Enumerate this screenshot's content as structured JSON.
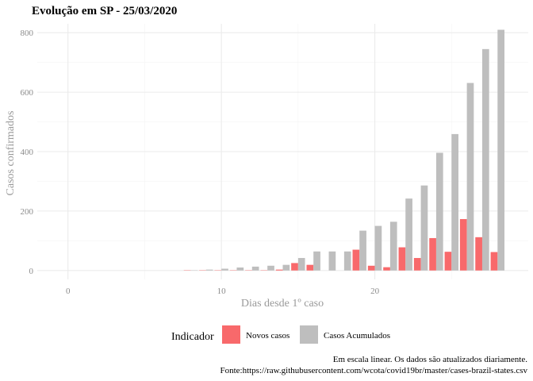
{
  "colors": {
    "novos": "#f8696b",
    "acumulados": "#bebebe",
    "grid_major": "#ebebeb",
    "grid_minor": "#f4f4f4"
  },
  "chart_data": {
    "type": "bar",
    "title": "Evolução em SP  -  25/03/2020",
    "xlabel": "Dias desde 1º caso",
    "ylabel": "Casos confirmados",
    "xlim": [
      -2,
      30
    ],
    "ylim": [
      -30,
      830
    ],
    "x_ticks": [
      0,
      10,
      20
    ],
    "y_ticks": [
      0,
      200,
      400,
      600,
      800
    ],
    "grid": true,
    "legend": {
      "position": "bottom",
      "title": "Indicador"
    },
    "x": [
      8,
      9,
      10,
      11,
      12,
      13,
      14,
      15,
      16,
      17,
      18,
      19,
      20,
      21,
      22,
      23,
      24,
      25,
      26,
      27,
      28
    ],
    "series": [
      {
        "name": "Novos casos",
        "values": [
          1,
          1,
          1,
          1,
          1,
          1,
          3,
          25,
          19,
          0,
          0,
          70,
          16,
          11,
          78,
          42,
          109,
          63,
          173,
          112,
          62
        ]
      },
      {
        "name": "Casos Acumulados",
        "values": [
          1,
          3,
          6,
          10,
          13,
          16,
          19,
          42,
          64,
          64,
          64,
          134,
          150,
          164,
          242,
          286,
          396,
          459,
          631,
          745,
          810
        ]
      }
    ],
    "caption": [
      "Em escala linear. Os dados são atualizados diariamente.",
      "Fonte:https://raw.githubusercontent.com/wcota/covid19br/master/cases-brazil-states.csv"
    ]
  }
}
